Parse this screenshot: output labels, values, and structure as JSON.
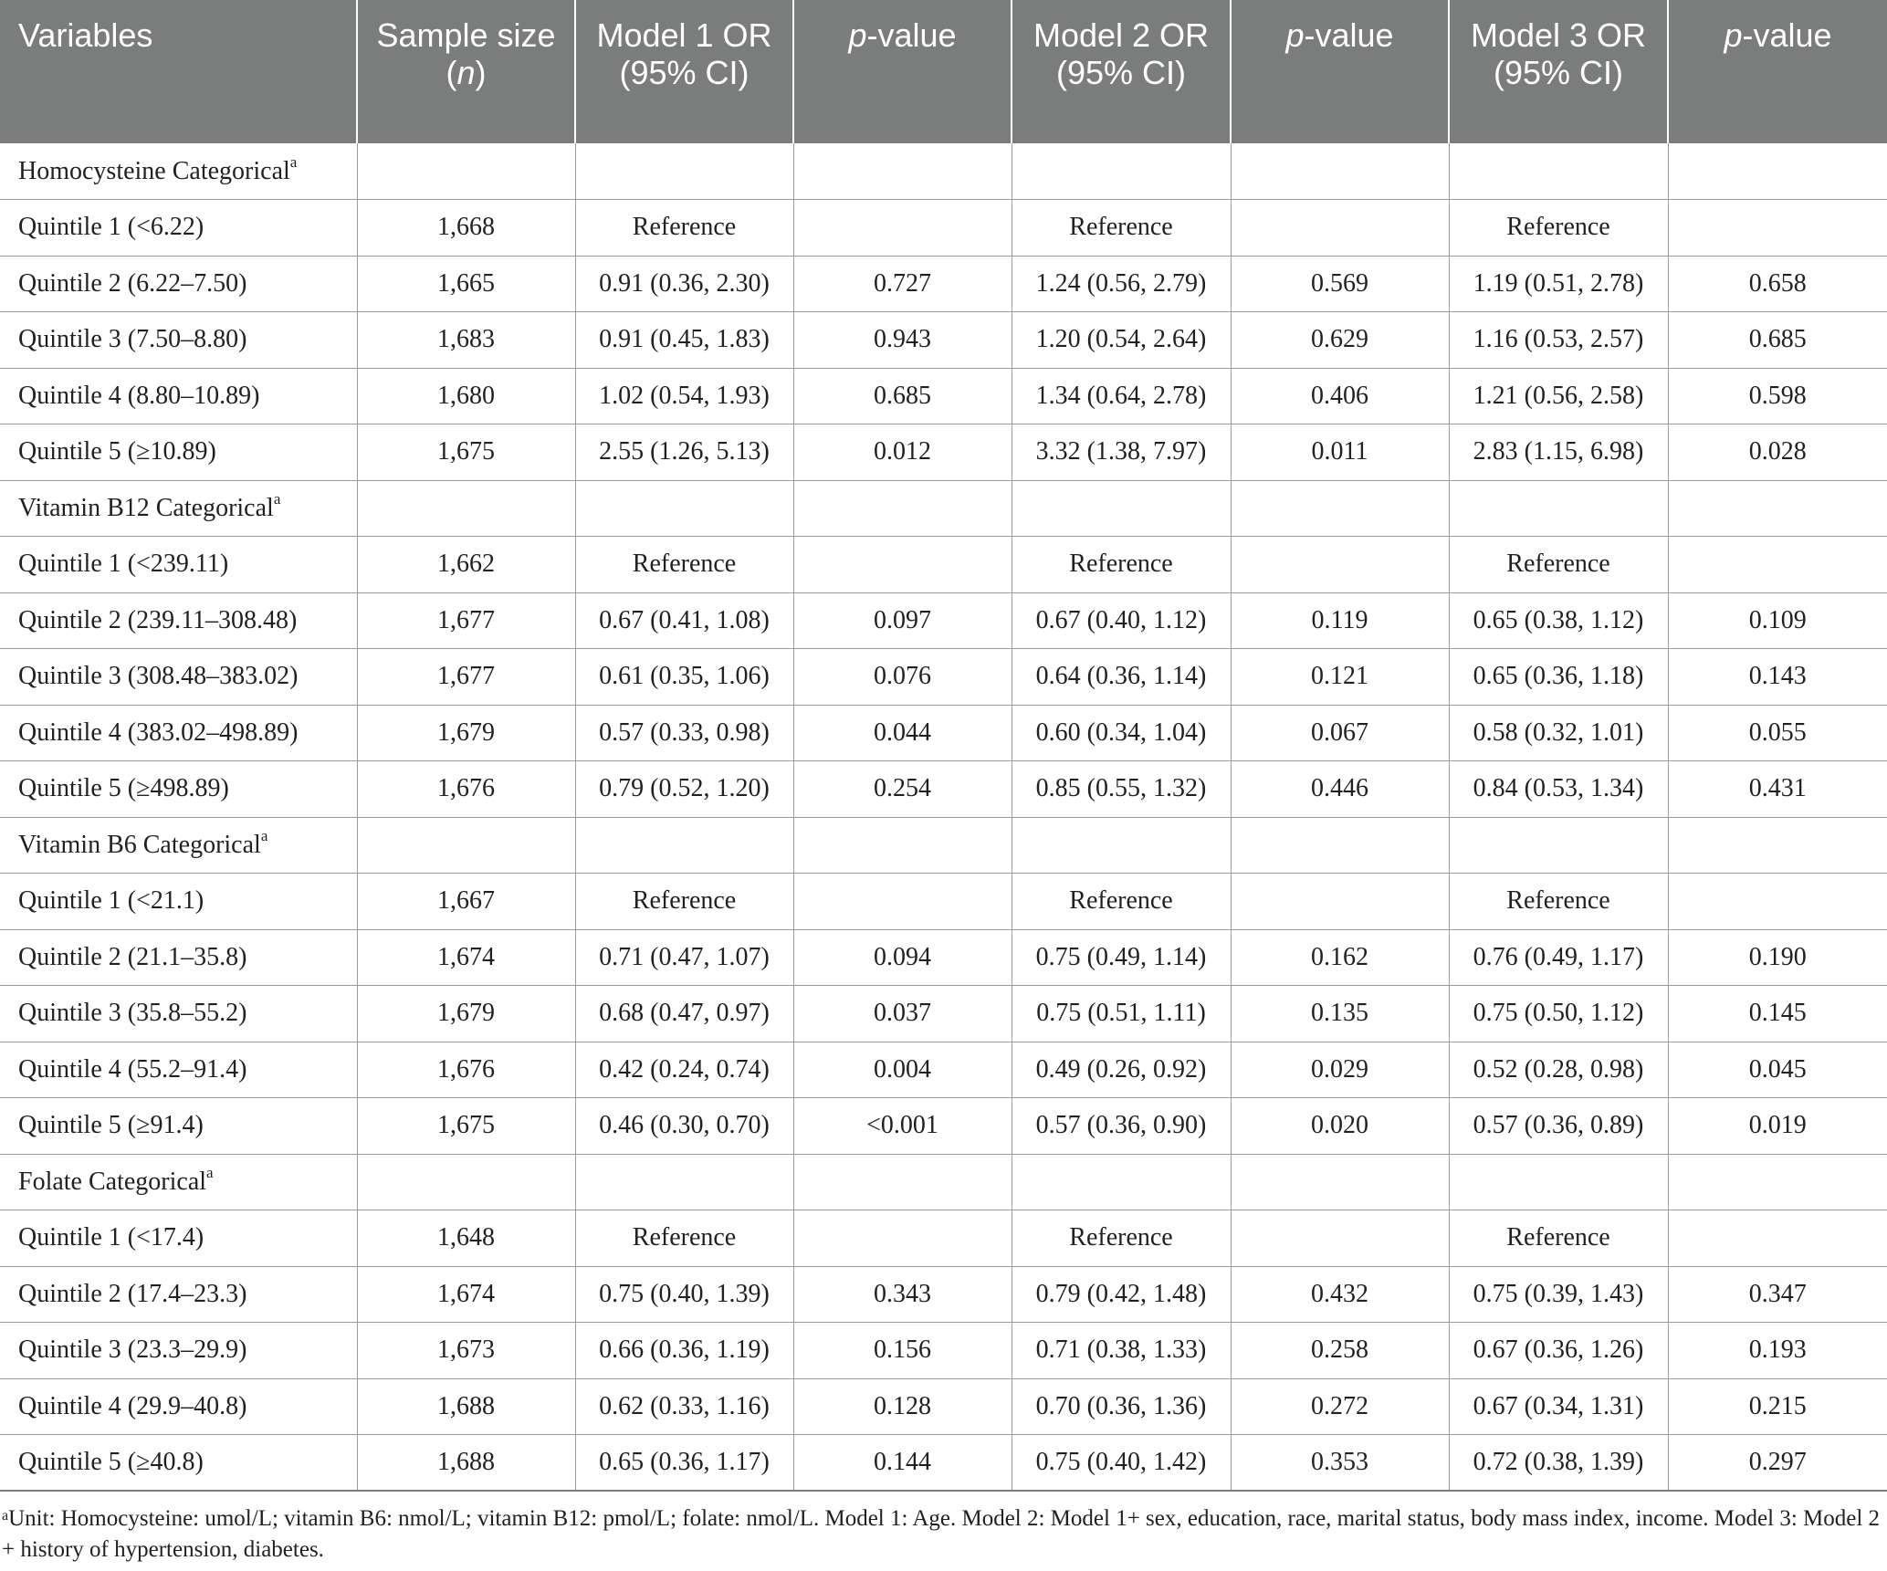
{
  "table": {
    "headers": [
      {
        "pre": "Variables",
        "italic": "",
        "post": ""
      },
      {
        "pre": "Sample size (",
        "italic": "n",
        "post": ")"
      },
      {
        "pre": "Model 1 OR (95% CI)",
        "italic": "",
        "post": ""
      },
      {
        "pre": "",
        "italic": "p",
        "post": "-value"
      },
      {
        "pre": "Model 2 OR (95% CI)",
        "italic": "",
        "post": ""
      },
      {
        "pre": "",
        "italic": "p",
        "post": "-value"
      },
      {
        "pre": "Model 3 OR (95% CI)",
        "italic": "",
        "post": ""
      },
      {
        "pre": "",
        "italic": "p",
        "post": "-value"
      }
    ],
    "footnote_marker": "a",
    "rows": [
      {
        "type": "section",
        "label": "Homocysteine Categorical"
      },
      {
        "type": "data",
        "cells": [
          "Quintile 1 (<6.22)",
          "1,668",
          "Reference",
          "",
          "Reference",
          "",
          "Reference",
          ""
        ]
      },
      {
        "type": "data",
        "cells": [
          "Quintile 2 (6.22–7.50)",
          "1,665",
          "0.91 (0.36, 2.30)",
          "0.727",
          "1.24 (0.56, 2.79)",
          "0.569",
          "1.19 (0.51, 2.78)",
          "0.658"
        ]
      },
      {
        "type": "data",
        "cells": [
          "Quintile 3 (7.50–8.80)",
          "1,683",
          "0.91 (0.45, 1.83)",
          "0.943",
          "1.20 (0.54, 2.64)",
          "0.629",
          "1.16 (0.53, 2.57)",
          "0.685"
        ]
      },
      {
        "type": "data",
        "cells": [
          "Quintile 4 (8.80–10.89)",
          "1,680",
          "1.02 (0.54, 1.93)",
          "0.685",
          "1.34 (0.64, 2.78)",
          "0.406",
          "1.21 (0.56, 2.58)",
          "0.598"
        ]
      },
      {
        "type": "data",
        "cells": [
          "Quintile 5 (≥10.89)",
          "1,675",
          "2.55 (1.26, 5.13)",
          "0.012",
          "3.32 (1.38, 7.97)",
          "0.011",
          "2.83 (1.15, 6.98)",
          "0.028"
        ]
      },
      {
        "type": "section",
        "label": "Vitamin B12 Categorical"
      },
      {
        "type": "data",
        "cells": [
          "Quintile 1 (<239.11)",
          "1,662",
          "Reference",
          "",
          "Reference",
          "",
          "Reference",
          ""
        ]
      },
      {
        "type": "data",
        "cells": [
          "Quintile 2 (239.11–308.48)",
          "1,677",
          "0.67 (0.41, 1.08)",
          "0.097",
          "0.67 (0.40, 1.12)",
          "0.119",
          "0.65 (0.38, 1.12)",
          "0.109"
        ]
      },
      {
        "type": "data",
        "cells": [
          "Quintile 3 (308.48–383.02)",
          "1,677",
          "0.61 (0.35, 1.06)",
          "0.076",
          "0.64 (0.36, 1.14)",
          "0.121",
          "0.65 (0.36, 1.18)",
          "0.143"
        ]
      },
      {
        "type": "data",
        "cells": [
          "Quintile 4 (383.02–498.89)",
          "1,679",
          "0.57 (0.33, 0.98)",
          "0.044",
          "0.60 (0.34, 1.04)",
          "0.067",
          "0.58 (0.32, 1.01)",
          "0.055"
        ]
      },
      {
        "type": "data",
        "cells": [
          "Quintile 5 (≥498.89)",
          "1,676",
          "0.79 (0.52, 1.20)",
          "0.254",
          "0.85 (0.55, 1.32)",
          "0.446",
          "0.84 (0.53, 1.34)",
          "0.431"
        ]
      },
      {
        "type": "section",
        "label": "Vitamin B6 Categorical"
      },
      {
        "type": "data",
        "cells": [
          "Quintile 1 (<21.1)",
          "1,667",
          "Reference",
          "",
          "Reference",
          "",
          "Reference",
          ""
        ]
      },
      {
        "type": "data",
        "cells": [
          "Quintile 2 (21.1–35.8)",
          "1,674",
          "0.71 (0.47, 1.07)",
          "0.094",
          "0.75 (0.49, 1.14)",
          "0.162",
          "0.76 (0.49, 1.17)",
          "0.190"
        ]
      },
      {
        "type": "data",
        "cells": [
          "Quintile 3 (35.8–55.2)",
          "1,679",
          "0.68 (0.47, 0.97)",
          "0.037",
          "0.75 (0.51, 1.11)",
          "0.135",
          "0.75 (0.50, 1.12)",
          "0.145"
        ]
      },
      {
        "type": "data",
        "cells": [
          "Quintile 4 (55.2–91.4)",
          "1,676",
          "0.42 (0.24, 0.74)",
          "0.004",
          "0.49 (0.26, 0.92)",
          "0.029",
          "0.52 (0.28, 0.98)",
          "0.045"
        ]
      },
      {
        "type": "data",
        "cells": [
          "Quintile 5 (≥91.4)",
          "1,675",
          "0.46 (0.30, 0.70)",
          "<0.001",
          "0.57 (0.36, 0.90)",
          "0.020",
          "0.57 (0.36, 0.89)",
          "0.019"
        ]
      },
      {
        "type": "section",
        "label": "Folate Categorical"
      },
      {
        "type": "data",
        "cells": [
          "Quintile 1 (<17.4)",
          "1,648",
          "Reference",
          "",
          "Reference",
          "",
          "Reference",
          ""
        ]
      },
      {
        "type": "data",
        "cells": [
          "Quintile 2 (17.4–23.3)",
          "1,674",
          "0.75 (0.40, 1.39)",
          "0.343",
          "0.79 (0.42, 1.48)",
          "0.432",
          "0.75 (0.39, 1.43)",
          "0.347"
        ]
      },
      {
        "type": "data",
        "cells": [
          "Quintile 3 (23.3–29.9)",
          "1,673",
          "0.66 (0.36, 1.19)",
          "0.156",
          "0.71 (0.38, 1.33)",
          "0.258",
          "0.67 (0.36, 1.26)",
          "0.193"
        ]
      },
      {
        "type": "data",
        "cells": [
          "Quintile 4 (29.9–40.8)",
          "1,688",
          "0.62 (0.33, 1.16)",
          "0.128",
          "0.70 (0.36, 1.36)",
          "0.272",
          "0.67 (0.34, 1.31)",
          "0.215"
        ]
      },
      {
        "type": "data",
        "cells": [
          "Quintile 5 (≥40.8)",
          "1,688",
          "0.65 (0.36, 1.17)",
          "0.144",
          "0.75 (0.40, 1.42)",
          "0.353",
          "0.72 (0.38, 1.39)",
          "0.297"
        ]
      }
    ]
  },
  "footnote": {
    "marker": "a",
    "text": "Unit: Homocysteine: umol/L; vitamin B6: nmol/L; vitamin B12: pmol/L; folate: nmol/L. Model 1: Age. Model 2: Model 1+ sex, education, race, marital status, body mass index, income. Model 3: Model 2 + history of hypertension, diabetes."
  }
}
